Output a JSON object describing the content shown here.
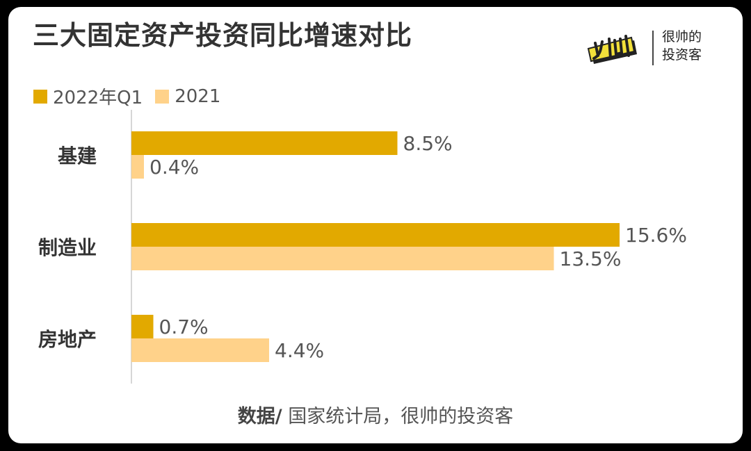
{
  "title": "三大固定资产投资同比增速对比",
  "logo": {
    "line1": "很帅的",
    "line2": "投资客"
  },
  "colors": {
    "series1": "#E2A900",
    "series2": "#FFD28A",
    "axis": "#D6D6D6",
    "text": "#555555"
  },
  "chart_data": {
    "type": "bar",
    "orientation": "horizontal",
    "categories": [
      "基建",
      "制造业",
      "房地产"
    ],
    "series": [
      {
        "name": "2022年Q1",
        "values": [
          8.5,
          15.6,
          0.7
        ],
        "labels": [
          "8.5%",
          "15.6%",
          "0.7%"
        ]
      },
      {
        "name": "2021",
        "values": [
          0.4,
          13.5,
          4.4
        ],
        "labels": [
          "0.4%",
          "13.5%",
          "4.4%"
        ]
      }
    ],
    "title": "三大固定资产投资同比增速对比",
    "grid": false,
    "legend_position": "top-left"
  },
  "source": {
    "label": "数据/",
    "text": " 国家统计局，很帅的投资客"
  }
}
